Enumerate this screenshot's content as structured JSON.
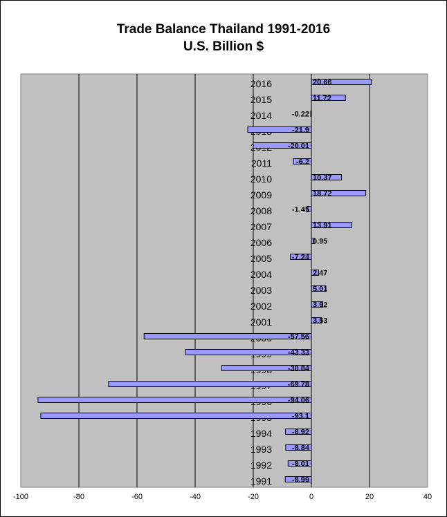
{
  "chart_data": {
    "type": "bar",
    "orientation": "horizontal",
    "title": "Trade Balance Thailand 1991-2016",
    "subtitle": "U.S. Billion $",
    "categories": [
      "1991",
      "1992",
      "1993",
      "1994",
      "1995",
      "1996",
      "1997",
      "1998",
      "1999",
      "2000",
      "2001",
      "2002",
      "2003",
      "2004",
      "2005",
      "2006",
      "2007",
      "2008",
      "2009",
      "2010",
      "2011",
      "2012",
      "2013",
      "2014",
      "2015",
      "2016"
    ],
    "values": [
      -8.99,
      -8.01,
      -8.84,
      -8.92,
      -93.1,
      -94.06,
      -69.78,
      -30.84,
      -43.33,
      -57.56,
      3.53,
      3.92,
      5.01,
      2.47,
      -7.24,
      0.95,
      13.91,
      -1.45,
      18.72,
      10.37,
      -6.2,
      -20.01,
      -21.9,
      -0.22,
      11.72,
      20.66
    ],
    "value_labels": [
      "-8.99",
      "-8.01",
      "-8.84",
      "-8.92",
      "-93.1",
      "-94.06",
      "-69.78",
      "-30.84",
      "-43.33",
      "-57.56",
      "3.53",
      "3.92",
      "5.01",
      "2.47",
      "-7.24",
      "0.95",
      "13.91",
      "-1.45",
      "18.72",
      "10.37",
      "-6.2",
      "-20.01",
      "-21.9",
      "-0.22",
      "11.72",
      "20.66"
    ],
    "xlim": [
      -100,
      40
    ],
    "x_ticks": [
      "-100",
      "-80",
      "-60",
      "-40",
      "-20",
      "0",
      "20",
      "40"
    ],
    "xlabel": "",
    "ylabel": "",
    "grid": "vertical gridlines",
    "legend": "none",
    "colors": {
      "plot_background": "#c0c0c0",
      "bar_fill": "#9999ff",
      "bar_stroke": "#000000",
      "gridline": "#000000"
    }
  }
}
